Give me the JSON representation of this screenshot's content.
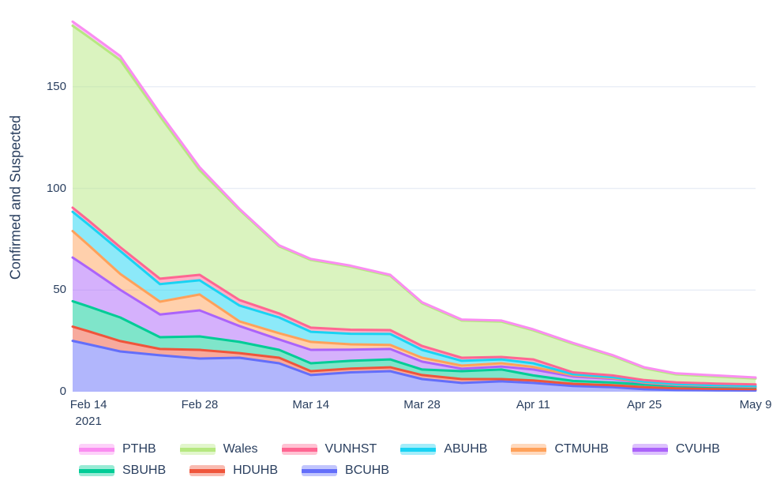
{
  "figure": {
    "yaxis_title": "Confirmed and Suspected",
    "background_color": "#ffffff",
    "text_color": "#2a3f5f",
    "grid_color": "#e8edf6"
  },
  "chart_data": {
    "type": "area",
    "stacked": true,
    "title": "",
    "xlabel": "",
    "ylabel": "Confirmed and Suspected",
    "grid": true,
    "fill_opacity": 0.5,
    "line_width": 3,
    "x_start_date": "Feb 12 2021",
    "x_end_date": "May 9 2021",
    "x_days": [
      0,
      2,
      6,
      11,
      16,
      21,
      26,
      30,
      35,
      40,
      44,
      49,
      54,
      58,
      63,
      68,
      72,
      76,
      81,
      86
    ],
    "ylim": [
      0,
      188
    ],
    "yticks": [
      0,
      50,
      100,
      150
    ],
    "xticks": [
      {
        "day": 2,
        "label": "Feb 14",
        "sublabel": "2021"
      },
      {
        "day": 16,
        "label": "Feb 28",
        "sublabel": ""
      },
      {
        "day": 30,
        "label": "Mar 14",
        "sublabel": ""
      },
      {
        "day": 44,
        "label": "Mar 28",
        "sublabel": ""
      },
      {
        "day": 58,
        "label": "Apr 11",
        "sublabel": ""
      },
      {
        "day": 72,
        "label": "Apr 25",
        "sublabel": ""
      },
      {
        "day": 86,
        "label": "May 9",
        "sublabel": ""
      }
    ],
    "series": [
      {
        "name": "BCUHB",
        "color": "#636EFA",
        "values": [
          25.0,
          23.3,
          19.8,
          17.9,
          16.3,
          16.7,
          14.0,
          8.2,
          9.5,
          10.1,
          6.2,
          4.3,
          5.1,
          4.3,
          2.8,
          2.2,
          1.2,
          0.9,
          0.7,
          0.6
        ]
      },
      {
        "name": "HDUHB",
        "color": "#EF553B",
        "values": [
          7.0,
          6.4,
          5.1,
          3.1,
          4.3,
          2.3,
          2.7,
          1.9,
          1.9,
          1.9,
          2.0,
          1.9,
          1.1,
          1.2,
          1.1,
          1.0,
          1.0,
          0.8,
          0.7,
          0.7
        ]
      },
      {
        "name": "SBUHB",
        "color": "#00CC96",
        "values": [
          12.5,
          12.2,
          11.6,
          5.8,
          6.6,
          5.5,
          3.9,
          3.9,
          3.8,
          3.9,
          2.7,
          3.9,
          4.7,
          2.5,
          1.4,
          1.3,
          1.3,
          1.1,
          1.0,
          0.9
        ]
      },
      {
        "name": "CVUHB",
        "color": "#AB63FA",
        "values": [
          21.5,
          18.9,
          13.6,
          11.2,
          12.8,
          7.8,
          5.1,
          6.6,
          5.5,
          5.1,
          3.9,
          1.2,
          1.5,
          2.9,
          2.2,
          1.8,
          0.8,
          0.5,
          0.4,
          0.3
        ]
      },
      {
        "name": "CTMUHB",
        "color": "#FFA15A",
        "values": [
          13.0,
          11.3,
          7.8,
          6.3,
          7.8,
          2.3,
          3.1,
          3.9,
          2.6,
          2.0,
          1.9,
          1.5,
          1.6,
          1.3,
          0.6,
          0.4,
          0.3,
          0.25,
          0.2,
          0.15
        ]
      },
      {
        "name": "ABUHB",
        "color": "#19D3F3",
        "values": [
          9.5,
          10.1,
          11.3,
          8.6,
          7.0,
          7.8,
          7.7,
          5.0,
          5.2,
          5.4,
          3.9,
          2.4,
          1.9,
          1.8,
          0.5,
          0.4,
          0.3,
          0.25,
          0.2,
          0.15
        ]
      },
      {
        "name": "VUNHST",
        "color": "#FF6692",
        "values": [
          2.0,
          2.0,
          1.9,
          2.7,
          2.7,
          2.7,
          2.0,
          2.0,
          2.0,
          1.9,
          1.9,
          1.5,
          1.2,
          1.9,
          0.9,
          0.9,
          0.8,
          0.8,
          0.8,
          0.8
        ]
      },
      {
        "name": "Wales",
        "color": "#B6E880",
        "values": [
          89.5,
          90.3,
          92.0,
          79.9,
          51.4,
          44.4,
          33.0,
          33.3,
          31.0,
          26.7,
          21.0,
          18.3,
          17.4,
          14.3,
          14.0,
          9.5,
          5.8,
          3.9,
          3.5,
          2.9
        ]
      },
      {
        "name": "PTHB",
        "color": "#FA8DF1",
        "values": [
          2.0,
          2.0,
          2.0,
          1.5,
          1.5,
          0.5,
          0.5,
          0.5,
          0.5,
          0.5,
          0.5,
          0.5,
          0.5,
          0.5,
          0.5,
          0.5,
          0.5,
          0.5,
          0.5,
          0.5
        ]
      }
    ],
    "legend_order": [
      "PTHB",
      "Wales",
      "VUNHST",
      "ABUHB",
      "CTMUHB",
      "CVUHB",
      "SBUHB",
      "HDUHB",
      "BCUHB"
    ],
    "legend_position": "bottom-left"
  }
}
